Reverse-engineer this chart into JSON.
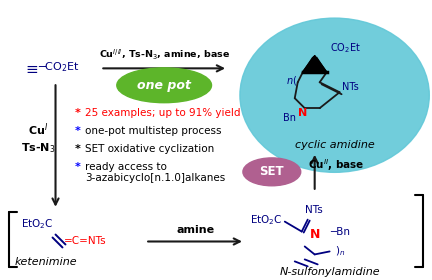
{
  "bg_color": "#ffffff",
  "figsize": [
    4.32,
    2.8
  ],
  "dpi": 100,
  "top_reagent": "Cu$^{I/II}$, Ts-N$_3$, amine, base",
  "one_pot_label": "one pot",
  "cyclic_amidine_label": "cyclic amidine",
  "ketenimine_label": "ketenimine",
  "n_sulfonylamidine_label": "N-sulfonylamidine",
  "left_reagent1": "Cu$^{I}$",
  "left_reagent2": "Ts-N$_3$",
  "bullets": [
    "25 examples; up to 91% yield",
    "one-pot multistep process",
    "SET oxidative cyclization",
    "ready access to\n3-azabicyclo[n.1.0]alkanes"
  ],
  "bullet_star_colors": [
    "red",
    "blue",
    "black",
    "blue"
  ],
  "bullet_text_colors": [
    "red",
    "black",
    "black",
    "black"
  ],
  "amine_label": "amine",
  "set_label": "SET",
  "cu_base_label": "Cu$^{II}$, base",
  "teal_color": "#62C8D8",
  "green_color": "#5DB52A",
  "set_color": "#B06090",
  "arrow_color": "#1a1a1a"
}
